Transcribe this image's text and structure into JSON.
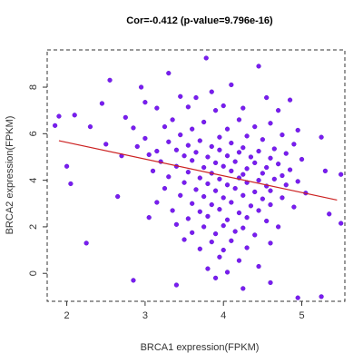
{
  "chart_data": {
    "type": "scatter",
    "title": "Cor=-0.412 (p-value=9.796e-16)",
    "xlabel": "BRCA1 expression(FPKM)",
    "ylabel": "BRCA2 expression(FPKM)",
    "xlim": [
      1.75,
      5.55
    ],
    "ylim": [
      -1.2,
      9.6
    ],
    "xticks": [
      2,
      3,
      4,
      5
    ],
    "yticks": [
      0,
      2,
      4,
      6,
      8
    ],
    "grid": false,
    "legend": "none",
    "point_color": "#7a1cf0",
    "point_edge_color": "#4b0ac8",
    "regression_line": {
      "color": "#cc2222",
      "x": [
        1.9,
        5.45
      ],
      "y": [
        5.7,
        3.15
      ]
    },
    "points": [
      [
        3.78,
        9.25
      ],
      [
        4.45,
        8.9
      ],
      [
        3.3,
        8.6
      ],
      [
        2.55,
        8.3
      ],
      [
        2.95,
        8.0
      ],
      [
        4.1,
        8.1
      ],
      [
        4.55,
        7.55
      ],
      [
        3.85,
        7.8
      ],
      [
        3.45,
        7.6
      ],
      [
        3.65,
        7.55
      ],
      [
        4.85,
        7.45
      ],
      [
        2.45,
        7.3
      ],
      [
        3.0,
        7.35
      ],
      [
        3.15,
        7.1
      ],
      [
        4.0,
        7.2
      ],
      [
        3.55,
        7.15
      ],
      [
        4.7,
        7.0
      ],
      [
        3.9,
        7.0
      ],
      [
        4.25,
        7.1
      ],
      [
        2.1,
        6.8
      ],
      [
        1.9,
        6.75
      ],
      [
        2.75,
        6.7
      ],
      [
        3.35,
        6.6
      ],
      [
        3.75,
        6.5
      ],
      [
        4.2,
        6.6
      ],
      [
        4.6,
        6.45
      ],
      [
        1.85,
        6.35
      ],
      [
        2.3,
        6.3
      ],
      [
        2.85,
        6.25
      ],
      [
        3.25,
        6.3
      ],
      [
        3.6,
        6.2
      ],
      [
        4.05,
        6.2
      ],
      [
        4.4,
        6.3
      ],
      [
        4.95,
        6.15
      ],
      [
        3.45,
        5.95
      ],
      [
        3.95,
        5.85
      ],
      [
        4.3,
        5.9
      ],
      [
        4.75,
        5.95
      ],
      [
        3.0,
        5.8
      ],
      [
        5.25,
        5.85
      ],
      [
        2.5,
        5.55
      ],
      [
        3.3,
        5.65
      ],
      [
        3.7,
        5.7
      ],
      [
        4.1,
        5.6
      ],
      [
        4.5,
        5.75
      ],
      [
        4.9,
        5.55
      ],
      [
        2.9,
        5.45
      ],
      [
        3.55,
        5.5
      ],
      [
        3.85,
        5.45
      ],
      [
        4.25,
        5.4
      ],
      [
        4.65,
        5.35
      ],
      [
        3.15,
        5.25
      ],
      [
        3.4,
        5.3
      ],
      [
        3.65,
        5.2
      ],
      [
        3.95,
        5.3
      ],
      [
        4.2,
        5.2
      ],
      [
        4.45,
        5.25
      ],
      [
        4.8,
        5.15
      ],
      [
        2.7,
        5.05
      ],
      [
        3.05,
        5.1
      ],
      [
        3.5,
        5.05
      ],
      [
        3.8,
        5.0
      ],
      [
        4.05,
        5.05
      ],
      [
        4.35,
        5.0
      ],
      [
        4.6,
        4.95
      ],
      [
        5.0,
        4.9
      ],
      [
        3.2,
        4.8
      ],
      [
        3.6,
        4.85
      ],
      [
        3.9,
        4.75
      ],
      [
        4.15,
        4.8
      ],
      [
        4.4,
        4.75
      ],
      [
        4.7,
        4.7
      ],
      [
        2.0,
        4.6
      ],
      [
        3.4,
        4.6
      ],
      [
        3.75,
        4.55
      ],
      [
        4.0,
        4.6
      ],
      [
        4.3,
        4.5
      ],
      [
        4.55,
        4.55
      ],
      [
        4.85,
        4.45
      ],
      [
        5.3,
        4.4
      ],
      [
        3.1,
        4.4
      ],
      [
        3.55,
        4.35
      ],
      [
        3.85,
        4.3
      ],
      [
        4.1,
        4.4
      ],
      [
        4.25,
        4.25
      ],
      [
        4.5,
        4.3
      ],
      [
        4.75,
        4.2
      ],
      [
        5.5,
        4.25
      ],
      [
        3.3,
        4.15
      ],
      [
        3.7,
        4.1
      ],
      [
        3.95,
        4.05
      ],
      [
        4.2,
        4.1
      ],
      [
        4.45,
        4.0
      ],
      [
        4.65,
        4.05
      ],
      [
        4.95,
        3.95
      ],
      [
        2.05,
        3.85
      ],
      [
        3.5,
        3.9
      ],
      [
        3.8,
        3.85
      ],
      [
        4.05,
        3.8
      ],
      [
        4.3,
        3.9
      ],
      [
        4.55,
        3.75
      ],
      [
        4.8,
        3.8
      ],
      [
        3.25,
        3.65
      ],
      [
        3.65,
        3.6
      ],
      [
        3.9,
        3.55
      ],
      [
        4.15,
        3.65
      ],
      [
        4.4,
        3.5
      ],
      [
        4.6,
        3.55
      ],
      [
        5.05,
        3.45
      ],
      [
        2.65,
        3.3
      ],
      [
        3.45,
        3.35
      ],
      [
        3.75,
        3.3
      ],
      [
        4.0,
        3.25
      ],
      [
        4.25,
        3.35
      ],
      [
        4.5,
        3.2
      ],
      [
        4.75,
        3.25
      ],
      [
        3.15,
        3.05
      ],
      [
        3.6,
        3.0
      ],
      [
        3.85,
        2.95
      ],
      [
        4.1,
        3.05
      ],
      [
        4.35,
        2.9
      ],
      [
        4.6,
        2.95
      ],
      [
        4.9,
        2.85
      ],
      [
        3.35,
        2.7
      ],
      [
        3.7,
        2.65
      ],
      [
        3.95,
        2.75
      ],
      [
        4.2,
        2.6
      ],
      [
        4.45,
        2.7
      ],
      [
        5.35,
        2.55
      ],
      [
        3.05,
        2.4
      ],
      [
        3.55,
        2.35
      ],
      [
        3.8,
        2.45
      ],
      [
        4.05,
        2.3
      ],
      [
        4.3,
        2.4
      ],
      [
        4.55,
        2.25
      ],
      [
        5.5,
        2.15
      ],
      [
        3.4,
        2.1
      ],
      [
        3.75,
        2.0
      ],
      [
        4.0,
        2.05
      ],
      [
        4.25,
        1.95
      ],
      [
        4.7,
        2.0
      ],
      [
        3.6,
        1.75
      ],
      [
        3.9,
        1.7
      ],
      [
        4.15,
        1.8
      ],
      [
        4.4,
        1.65
      ],
      [
        2.25,
        1.3
      ],
      [
        3.5,
        1.45
      ],
      [
        3.85,
        1.35
      ],
      [
        4.1,
        1.4
      ],
      [
        4.6,
        1.3
      ],
      [
        3.7,
        1.05
      ],
      [
        4.0,
        1.0
      ],
      [
        4.3,
        1.1
      ],
      [
        3.95,
        0.7
      ],
      [
        4.2,
        0.55
      ],
      [
        3.8,
        0.2
      ],
      [
        4.05,
        0.05
      ],
      [
        4.45,
        0.3
      ],
      [
        2.85,
        -0.3
      ],
      [
        3.4,
        -0.5
      ],
      [
        4.25,
        -0.65
      ],
      [
        4.95,
        -1.05
      ],
      [
        5.25,
        -1.0
      ],
      [
        3.9,
        -0.2
      ],
      [
        4.6,
        -0.4
      ]
    ]
  }
}
